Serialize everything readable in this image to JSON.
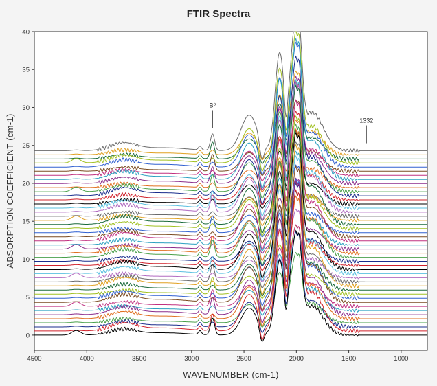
{
  "chart_data": {
    "type": "line",
    "title": "FTIR Spectra",
    "xlabel": "WAVENUMBER (cm-1)",
    "ylabel": "ABSORPTION COEFFICIENT (cm-1)",
    "xlim": [
      4500,
      750
    ],
    "ylim": [
      -2,
      40
    ],
    "x_reversed": true,
    "grid": false,
    "x_ticks": [
      4500,
      4000,
      3500,
      3000,
      2500,
      2000,
      1500,
      1000
    ],
    "y_ticks": [
      0,
      5,
      10,
      15,
      20,
      25,
      30,
      35,
      40
    ],
    "series_count": 46,
    "series_offset_step": 0.54,
    "annotations": [
      {
        "text": "B⁰",
        "x": 2800,
        "y": 30
      },
      {
        "text": "1332",
        "x": 1332,
        "y": 28
      }
    ],
    "colors": [
      "#000000",
      "#d0202a",
      "#1a2d8c",
      "#4aa04a",
      "#e07020",
      "#8b2c8b",
      "#2aa0c0",
      "#c03080",
      "#7a4a20",
      "#3060d0",
      "#a0c020",
      "#1a6a3a",
      "#e0a020",
      "#6a6a6a",
      "#b06ac0",
      "#5ac0e0"
    ]
  }
}
